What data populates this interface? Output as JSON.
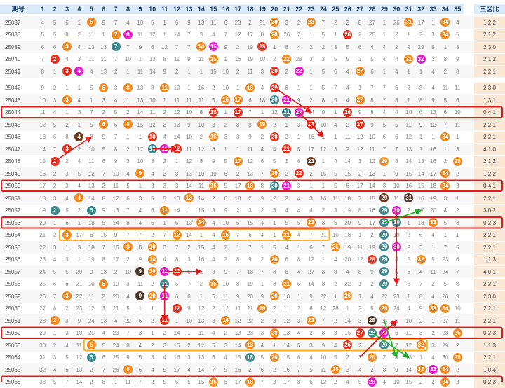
{
  "header": {
    "period_label": "期号",
    "ratio_label": "三区比",
    "numbers": [
      "1",
      "2",
      "3",
      "4",
      "5",
      "6",
      "7",
      "8",
      "9",
      "10",
      "11",
      "12",
      "13",
      "14",
      "15",
      "16",
      "17",
      "18",
      "19",
      "20",
      "21",
      "22",
      "23",
      "24",
      "25",
      "26",
      "27",
      "28",
      "29",
      "30",
      "31",
      "32",
      "33",
      "34",
      "35"
    ]
  },
  "colors": {
    "orange": "#f08a21",
    "red": "#e8321f",
    "magenta": "#e21ec9",
    "teal": "#3f8a8f",
    "brown": "#6e3a1f",
    "dark": "#4a3526",
    "zone_fill": "#f9d6cf",
    "ratio_fill": "#fbe9d8",
    "header_fill": "#dcebf9",
    "highlight_border": "#e31b1b",
    "yellow_border": "#f2b322",
    "green_arrow": "#22b02f",
    "red_arrow": "#e31b1b"
  },
  "rows": [
    {
      "period": "25037",
      "ratio": "1:2:2",
      "balls": [
        [
          5,
          "o"
        ],
        [
          20,
          "o"
        ],
        [
          23,
          "o"
        ],
        [
          31,
          "o"
        ],
        [
          34,
          "o"
        ]
      ],
      "miss": "4 5 6 1 4 9 7 4 10 5 1 6 9 13 11 6 23 2 21 17 3 2 3 7 2 2 8 27 1 26 5 17 1 8 4"
    },
    {
      "period": "25038",
      "ratio": "2:1:2",
      "balls": [
        [
          7,
          "o"
        ],
        [
          8,
          "m"
        ],
        [
          20,
          "o"
        ],
        [
          26,
          "r"
        ],
        [
          34,
          "o"
        ]
      ],
      "miss": "5 5 8 2 11 1 7 8 11 12 1 14 7 3 4 7 12 17 8 3 26 2 1 5 1 2 2 25 1 2 1 2 3 3 5"
    },
    {
      "period": "25039",
      "ratio": "2:3:0",
      "balls": [
        [
          3,
          "o"
        ],
        [
          7,
          "t"
        ],
        [
          14,
          "o"
        ],
        [
          15,
          "m"
        ],
        [
          19,
          "r"
        ]
      ],
      "miss": "6 6 8 4 13 13 4 7 9 6 12 7 7 1 1 9 2 19 1 1 8 4 2 2 3 5 6 4 4 2 2 29 5 1 8"
    },
    {
      "period": "25040",
      "ratio": "2:1:2",
      "balls": [
        [
          2,
          "r"
        ],
        [
          15,
          "o"
        ],
        [
          21,
          "o"
        ],
        [
          31,
          "o"
        ],
        [
          32,
          "m"
        ]
      ],
      "miss": "7 1 4 3 11 11 7 10 1 13 8 11 9 11 1 1 16 19 10 2 1 28 3 3 5 5 3 5 4 4 1 1 2 8 9"
    },
    {
      "period": "25041",
      "ratio": "2:2:1",
      "balls": [
        [
          3,
          "r"
        ],
        [
          4,
          "m"
        ],
        [
          20,
          "r"
        ],
        [
          22,
          "m"
        ],
        [
          27,
          "o"
        ]
      ],
      "miss": "8 1 1 1 4 13 2 1 11 14 9 2 1 1 15 10 2 11 3 1 2 1 1 5 6 4 1 6 1 4 1 1 4 2 8"
    },
    {
      "period": "25042",
      "ratio": "2:3:0",
      "balls": [
        [
          6,
          "o"
        ],
        [
          8,
          "o"
        ],
        [
          11,
          "o"
        ],
        [
          18,
          "o"
        ],
        [
          20,
          "r"
        ]
      ],
      "miss": "9 2 1 1 5 1 3 1 13 8 1 10 1 16 2 10 1 1 4 1 8 1 1 5 7 4 1 7 7 6 2 8 4 11 11"
    },
    {
      "period": "25043",
      "ratio": "1:3:1",
      "balls": [
        [
          3,
          "o"
        ],
        [
          16,
          "o"
        ],
        [
          17,
          "o"
        ],
        [
          20,
          "t"
        ],
        [
          21,
          "m"
        ],
        [
          27,
          "o"
        ]
      ],
      "miss": "10 3 1 4 1 3 4 1 13 10 1 11 11 11 5 1 1 6 18 1 1 9 2 8 5 4 1 8 7 8 1 8 9 5 6"
    },
    {
      "period": "25044",
      "ratio": "0:4:1",
      "balls": [
        [
          15,
          "r"
        ],
        [
          17,
          "r"
        ],
        [
          21,
          "t"
        ],
        [
          22,
          "m"
        ],
        [
          26,
          "r"
        ]
      ],
      "miss": "11 4 1 3 7 2 5 2 14 11 2 12 10 8 1 1 1 7 1 12 1 1 14 9 1 1 9 8 4 4 10 6 13 6 10"
    },
    {
      "period": "25045",
      "ratio": "2:2:1",
      "balls": [
        [
          6,
          "o"
        ],
        [
          8,
          "o"
        ],
        [
          19,
          "o"
        ],
        [
          23,
          "r"
        ],
        [
          27,
          "r"
        ]
      ],
      "miss": "12 5 2 1 5 1 6 1 15 12 3 13 9 10 3 2 8 8 1 2 1 3 1 10 4 2 1 9 5 5 11 9 12 7 11"
    },
    {
      "period": "25046",
      "ratio": "2:2:1",
      "balls": [
        [
          4,
          "b"
        ],
        [
          10,
          "r"
        ],
        [
          15,
          "o"
        ],
        [
          20,
          "r"
        ],
        [
          34,
          "o"
        ]
      ],
      "miss": "13 6 8 1 9 5 7 1 1 1 4 14 10 2 1 3 3 9 2 1 2 1 16 1 1 11 12 10 6 6 12 1 1 1 1"
    },
    {
      "period": "25047",
      "ratio": "4:1:0",
      "balls": [
        [
          3,
          "r"
        ],
        [
          10,
          "t"
        ],
        [
          11,
          "m"
        ],
        [
          12,
          "r"
        ],
        [
          21,
          "r"
        ]
      ],
      "miss": "14 7 1 2 10 5 8 2 17 1 1 1 11 12 8 1 1 11 4 4 1 5 17 12 3 2 12 11 7 7 13 1 16 1 3"
    },
    {
      "period": "25048",
      "ratio": "2:1:2",
      "balls": [
        [
          2,
          "r"
        ],
        [
          17,
          "o"
        ],
        [
          23,
          "b"
        ],
        [
          29,
          "o"
        ],
        [
          35,
          "o"
        ]
      ],
      "miss": "15 1 2 4 11 6 9 3 10 3 2 1 12 8 9 5 1 12 6 5 1 6 1 1 4 14 1 12 1 8 14 13 16 2 1"
    },
    {
      "period": "25049",
      "ratio": "1:2:2",
      "balls": [
        [
          9,
          "o"
        ],
        [
          20,
          "o"
        ],
        [
          22,
          "r"
        ],
        [
          34,
          "o"
        ]
      ],
      "miss": "16 2 3 5 12 7 10 4 1 4 3 3 13 10 10 6 2 13 7 1 2 1 2 15 5 15 2 13 1 9 15 14 17 1 2"
    },
    {
      "period": "25050",
      "ratio": "0:4:1",
      "balls": [
        [
          15,
          "o"
        ],
        [
          18,
          "o"
        ],
        [
          20,
          "t"
        ],
        [
          21,
          "m"
        ],
        [
          34,
          "o"
        ]
      ],
      "miss": "17 2 3 4 13 2 11 5 1 3 3 3 14 11 1 5 17 1 8 1 1 3 1 1 5 6 17 14 3 10 16 15 18 1 3"
    },
    {
      "period": "25051",
      "ratio": "2:2:1",
      "balls": [
        [
          4,
          "o"
        ],
        [
          13,
          "o"
        ],
        [
          29,
          "b"
        ],
        [
          31,
          "d"
        ]
      ],
      "miss": "18 3 4 1 14 8 12 6 3 5 5 13 1 14 2 6 18 2 9 2 2 4 3 16 11 18 7 15 1 11 1 16 19 3 1"
    },
    {
      "period": "25052",
      "ratio": "3:0:2",
      "balls": [
        [
          2,
          "t"
        ],
        [
          5,
          "t"
        ],
        [
          11,
          "o"
        ],
        [
          29,
          "t"
        ],
        [
          30,
          "m"
        ]
      ],
      "miss": "19 1 5 2 1 9 13 7 4 6 1 14 1 15 3 9 2 3 2 3 4 4 4 2 3 19 8 16 1 1 2 17 20 4 2"
    },
    {
      "period": "25053",
      "ratio": "0:2:3",
      "balls": [
        [
          14,
          "o"
        ],
        [
          23,
          "o"
        ],
        [
          29,
          "t"
        ],
        [
          30,
          "t"
        ],
        [
          33,
          "o"
        ]
      ],
      "miss": "20 1 6 1 18 5 14 8 4 6 1 6 13 1 4 10 5 15 4 1 5 5 1 3 6 20 9 17 1 1 1 18 1 5 3"
    },
    {
      "period": "25054",
      "ratio": "2:2:1",
      "balls": [
        [
          3,
          "o"
        ],
        [
          12,
          "o"
        ],
        [
          16,
          "o"
        ],
        [
          21,
          "o"
        ],
        [
          29,
          "t"
        ]
      ],
      "miss": "21 2 1 17 6 15 9 7 7 2 7 1 14 1 4 3 7 6 4 1 1 4 7 21 10 18 1 2 3 19 2 6 4 1 1"
    },
    {
      "period": "25055",
      "ratio": "2:2:1",
      "balls": [
        [
          8,
          "o"
        ],
        [
          10,
          "o"
        ],
        [
          25,
          "o"
        ],
        [
          29,
          "t"
        ],
        [
          30,
          "m"
        ]
      ],
      "miss": "22 3 1 3 18 7 16 1 8 1 3 7 2 15 4 2 1 7 1 5 4 1 6 7 1 19 11 19 1 1 2 3 1 7 5"
    },
    {
      "period": "25056",
      "ratio": "1:1:3",
      "balls": [
        [
          10,
          "o"
        ],
        [
          20,
          "o"
        ],
        [
          28,
          "r"
        ],
        [
          29,
          "t"
        ],
        [
          32,
          "o"
        ]
      ],
      "miss": "23 4 3 1 19 8 17 2 9 1 4 8 3 16 4 2 8 9 2 1 6 8 12 1 4 20 12 1 1 4 5 1 5 23 6"
    },
    {
      "period": "25057",
      "ratio": "4:0:1",
      "balls": [
        [
          9,
          "d"
        ],
        [
          10,
          "o"
        ],
        [
          11,
          "m"
        ],
        [
          12,
          "r"
        ],
        [
          29,
          "t"
        ]
      ],
      "miss": "24 5 5 20 9 18 2 10 1 1 1 4 6 1 3 9 7 18 7 3 8 4 27 3 8 4 8 9 1 5 6 4 11 24 7"
    },
    {
      "period": "25058",
      "ratio": "2:2:1",
      "balls": [
        [
          6,
          "o"
        ],
        [
          11,
          "t"
        ],
        [
          15,
          "o"
        ],
        [
          21,
          "o"
        ],
        [
          29,
          "t"
        ]
      ],
      "miss": "25 6 6 21 10 1 19 3 11 2 1 5 7 2 1 10 8 19 1 8 1 5 14 3 2 22 1 2 3 1 3 7 2 5 8"
    },
    {
      "period": "25059",
      "ratio": "2:3:0",
      "balls": [
        [
          3,
          "o"
        ],
        [
          9,
          "d"
        ],
        [
          10,
          "o"
        ],
        [
          11,
          "m"
        ],
        [
          20,
          "o"
        ],
        [
          26,
          "o"
        ]
      ],
      "miss": "26 7 1 22 11 2 20 4 1 1 1 6 8 1 5 11 9 20 9 1 10 1 9 22 1 1 1 4 22 23 1 8 4 26 9"
    },
    {
      "period": "25060",
      "ratio": "2:2:1",
      "balls": [
        [
          12,
          "r"
        ],
        [
          19,
          "o"
        ],
        [
          29,
          "o"
        ],
        [
          33,
          "o"
        ],
        [
          34,
          "o"
        ]
      ],
      "miss": "27 8 2 23 12 3 21 5 1 1 1 1 9 12 2 12 11 21 1 2 11 2 6 12 28 1 2 5 1 24 4 9 1 1 10"
    },
    {
      "period": "25061",
      "ratio": "2:2:1",
      "balls": [
        [
          2,
          "o"
        ],
        [
          11,
          "r"
        ],
        [
          16,
          "o"
        ],
        [
          23,
          "o"
        ],
        [
          28,
          "d"
        ]
      ],
      "miss": "28 1 3 9 24 13 4 22 6 2 1 1 10 13 3 1 12 22 2 3 12 3 1 7 2 14 3 1 25 5 10 2 1 27 11"
    },
    {
      "period": "25062",
      "ratio": "0:2:3",
      "balls": [
        [
          20,
          "o"
        ],
        [
          27,
          "r"
        ],
        [
          28,
          "t"
        ],
        [
          29,
          "m"
        ],
        [
          35,
          "o"
        ]
      ],
      "miss": "29 1 3 10 25 4 23 7 3 1 2 14 1 11 4 2 13 23 3 1 13 4 2 8 3 15 1 1 1 6 11 3 2 28 1"
    },
    {
      "period": "25063",
      "ratio": "1:1:3",
      "balls": [
        [
          5,
          "o"
        ],
        [
          18,
          "o"
        ],
        [
          26,
          "r"
        ],
        [
          29,
          "t"
        ],
        [
          32,
          "o"
        ]
      ],
      "miss": "30 2 4 11 1 5 24 8 4 2 3 15 2 12 5 3 14 1 4 1 14 5 3 9 4 1 2 1 1 7 12 1 3 29 2"
    },
    {
      "period": "25064",
      "ratio": "2:2:1",
      "balls": [
        [
          5,
          "t"
        ],
        [
          18,
          "t"
        ],
        [
          20,
          "o"
        ],
        [
          28,
          "o"
        ],
        [
          35,
          "o"
        ]
      ],
      "miss": "31 3 5 12 1 6 25 9 5 3 4 16 3 13 6 4 15 1 5 1 15 6 4 10 5 2 3 1 2 8 13 1 4 30 1"
    },
    {
      "period": "25065",
      "ratio": "1:0:4",
      "balls": [
        [
          8,
          "o"
        ],
        [
          25,
          "o"
        ],
        [
          32,
          "o"
        ],
        [
          33,
          "m"
        ],
        [
          34,
          "o"
        ]
      ],
      "miss": "32 4 6 13 2 7 26 1 6 4 5 17 4 14 7 5 16 2 6 2 16 7 5 11 1 3 4 2 3 9 14 1 1 1 2"
    },
    {
      "period": "25066",
      "ratio": "0:2:3",
      "balls": [
        [
          15,
          "o"
        ],
        [
          18,
          "o"
        ],
        [
          28,
          "m"
        ],
        [
          34,
          "o"
        ]
      ],
      "miss": "33 5 7 14 2 8 1 11 7 2 5 6 5 15 1 6 17 1 7 3 17 8 6 12 2 4 5 1 4 10 15 2 2 1 3"
    }
  ]
}
